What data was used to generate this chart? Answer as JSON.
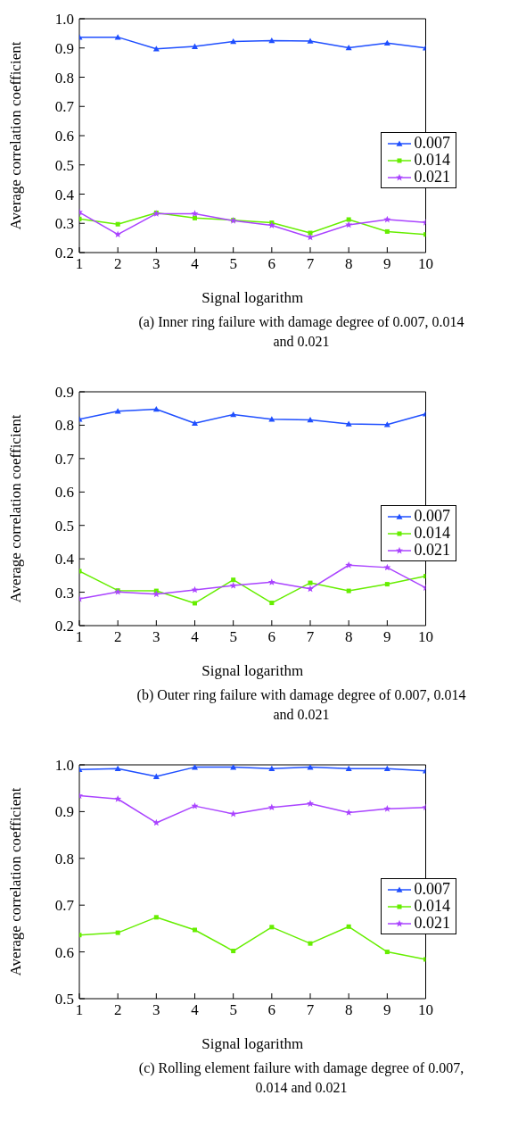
{
  "chart_data": [
    {
      "type": "line",
      "xlabel": "Signal logarithm",
      "ylabel": "Average correlation coefficient",
      "annotations": [
        "(a) Inner ring failure with damage degree of 0.007, 0.014 and 0.021"
      ],
      "x": [
        1,
        2,
        3,
        4,
        5,
        6,
        7,
        8,
        9,
        10
      ],
      "xlim": [
        1,
        10
      ],
      "xticks": [
        1,
        2,
        3,
        4,
        5,
        6,
        7,
        8,
        9,
        10
      ],
      "ylim": [
        0.2,
        1.0
      ],
      "yticks": [
        {
          "value": 0.2,
          "label": "0.2"
        },
        {
          "value": 0.3,
          "label": "0.3"
        },
        {
          "value": 0.4,
          "label": "0.4"
        },
        {
          "value": 0.5,
          "label": "0.5"
        },
        {
          "value": 0.6,
          "label": "0.6"
        },
        {
          "value": 0.7,
          "label": "0.7"
        },
        {
          "value": 0.8,
          "label": "0.8"
        },
        {
          "value": 0.9,
          "label": "0.9"
        },
        {
          "value": 1.0,
          "label": "1.0"
        }
      ],
      "grid": false,
      "legend": "right",
      "line_style": "solid",
      "series": [
        {
          "name": "0.007",
          "color": "#1f4fff",
          "marker": "triangle",
          "values": [
            0.937,
            0.937,
            0.897,
            0.905,
            0.922,
            0.925,
            0.924,
            0.901,
            0.917,
            0.9
          ]
        },
        {
          "name": "0.014",
          "color": "#66ee00",
          "marker": "square",
          "values": [
            0.315,
            0.297,
            0.336,
            0.318,
            0.311,
            0.302,
            0.267,
            0.313,
            0.272,
            0.262
          ]
        },
        {
          "name": "0.021",
          "color": "#aa44ff",
          "marker": "star",
          "values": [
            0.338,
            0.262,
            0.333,
            0.333,
            0.309,
            0.293,
            0.252,
            0.295,
            0.313,
            0.303
          ]
        }
      ]
    },
    {
      "type": "line",
      "xlabel": "Signal logarithm",
      "ylabel": "Average correlation coefficient",
      "annotations": [
        "(b) Outer ring failure with damage degree of 0.007, 0.014 and 0.021"
      ],
      "x": [
        1,
        2,
        3,
        4,
        5,
        6,
        7,
        8,
        9,
        10
      ],
      "xlim": [
        1,
        10
      ],
      "xticks": [
        1,
        2,
        3,
        4,
        5,
        6,
        7,
        8,
        9,
        10
      ],
      "ylim": [
        0.2,
        0.9
      ],
      "yticks": [
        {
          "value": 0.2,
          "label": "0.2"
        },
        {
          "value": 0.3,
          "label": "0.3"
        },
        {
          "value": 0.4,
          "label": "0.4"
        },
        {
          "value": 0.5,
          "label": "0.5"
        },
        {
          "value": 0.6,
          "label": "0.6"
        },
        {
          "value": 0.7,
          "label": "0.7"
        },
        {
          "value": 0.8,
          "label": "0.8"
        },
        {
          "value": 0.9,
          "label": "0.9"
        }
      ],
      "grid": false,
      "legend": "right",
      "line_style": "solid",
      "series": [
        {
          "name": "0.007",
          "color": "#1f4fff",
          "marker": "triangle",
          "values": [
            0.818,
            0.842,
            0.848,
            0.806,
            0.832,
            0.818,
            0.816,
            0.804,
            0.802,
            0.834
          ]
        },
        {
          "name": "0.014",
          "color": "#66ee00",
          "marker": "square",
          "values": [
            0.363,
            0.305,
            0.304,
            0.267,
            0.337,
            0.268,
            0.328,
            0.304,
            0.324,
            0.348
          ]
        },
        {
          "name": "0.021",
          "color": "#aa44ff",
          "marker": "star",
          "values": [
            0.28,
            0.301,
            0.294,
            0.307,
            0.32,
            0.33,
            0.31,
            0.381,
            0.374,
            0.313
          ]
        }
      ]
    },
    {
      "type": "line",
      "xlabel": "Signal logarithm",
      "ylabel": "Average correlation coefficient",
      "annotations": [
        "(c) Rolling element failure with damage degree of 0.007, 0.014 and 0.021"
      ],
      "x": [
        1,
        2,
        3,
        4,
        5,
        6,
        7,
        8,
        9,
        10
      ],
      "xlim": [
        1,
        10
      ],
      "xticks": [
        1,
        2,
        3,
        4,
        5,
        6,
        7,
        8,
        9,
        10
      ],
      "ylim": [
        0.5,
        1.0
      ],
      "yticks": [
        {
          "value": 0.5,
          "label": "0.5"
        },
        {
          "value": 0.6,
          "label": "0.6"
        },
        {
          "value": 0.7,
          "label": "0.7"
        },
        {
          "value": 0.8,
          "label": "0.8"
        },
        {
          "value": 0.9,
          "label": "0.9"
        },
        {
          "value": 1.0,
          "label": "1.0"
        }
      ],
      "grid": false,
      "legend": "right",
      "line_style": "solid",
      "series": [
        {
          "name": "0.007",
          "color": "#1f4fff",
          "marker": "triangle",
          "values": [
            0.99,
            0.992,
            0.975,
            0.995,
            0.995,
            0.992,
            0.995,
            0.992,
            0.992,
            0.987
          ]
        },
        {
          "name": "0.014",
          "color": "#66ee00",
          "marker": "square",
          "values": [
            0.636,
            0.641,
            0.674,
            0.647,
            0.602,
            0.653,
            0.618,
            0.654,
            0.6,
            0.584
          ]
        },
        {
          "name": "0.021",
          "color": "#aa44ff",
          "marker": "star",
          "values": [
            0.934,
            0.927,
            0.876,
            0.912,
            0.895,
            0.909,
            0.917,
            0.898,
            0.906,
            0.909
          ]
        }
      ]
    }
  ]
}
